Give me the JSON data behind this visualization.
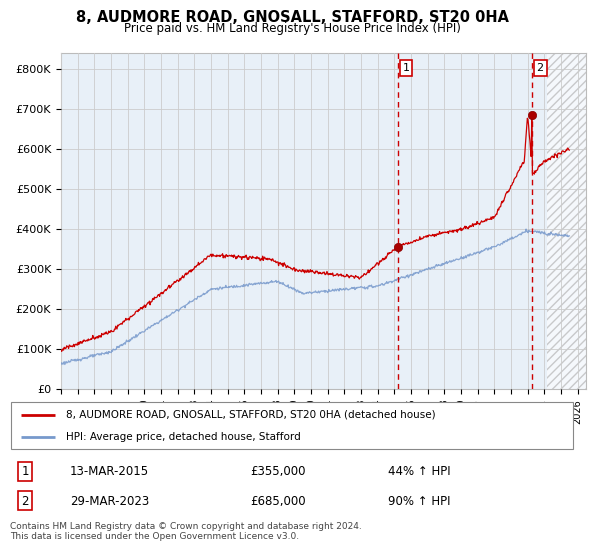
{
  "title": "8, AUDMORE ROAD, GNOSALL, STAFFORD, ST20 0HA",
  "subtitle": "Price paid vs. HM Land Registry's House Price Index (HPI)",
  "ylabel_ticks": [
    "£0",
    "£100K",
    "£200K",
    "£300K",
    "£400K",
    "£500K",
    "£600K",
    "£700K",
    "£800K"
  ],
  "ytick_values": [
    0,
    100000,
    200000,
    300000,
    400000,
    500000,
    600000,
    700000,
    800000
  ],
  "ylim": [
    0,
    840000
  ],
  "xlim_start": 1995.0,
  "xlim_end": 2026.5,
  "transaction1_x": 2015.2,
  "transaction1_y": 355000,
  "transaction2_x": 2023.25,
  "transaction2_y": 685000,
  "line1_color": "#cc0000",
  "line2_color": "#7799cc",
  "plot_bg": "#e8f0f8",
  "hatch_start": 2024.17,
  "legend_line1": "8, AUDMORE ROAD, GNOSALL, STAFFORD, ST20 0HA (detached house)",
  "legend_line2": "HPI: Average price, detached house, Stafford",
  "transaction1_date": "13-MAR-2015",
  "transaction1_price": "£355,000",
  "transaction1_hpi": "44% ↑ HPI",
  "transaction2_date": "29-MAR-2023",
  "transaction2_price": "£685,000",
  "transaction2_hpi": "90% ↑ HPI",
  "footer": "Contains HM Land Registry data © Crown copyright and database right 2024.\nThis data is licensed under the Open Government Licence v3.0.",
  "xtick_years": [
    1995,
    1996,
    1997,
    1998,
    1999,
    2000,
    2001,
    2002,
    2003,
    2004,
    2005,
    2006,
    2007,
    2008,
    2009,
    2010,
    2011,
    2012,
    2013,
    2014,
    2015,
    2016,
    2017,
    2018,
    2019,
    2020,
    2021,
    2022,
    2023,
    2024,
    2025,
    2026
  ]
}
